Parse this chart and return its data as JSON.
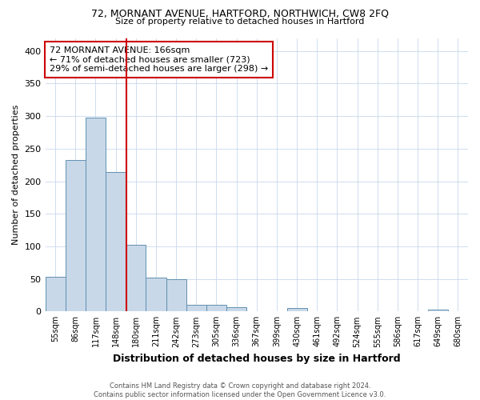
{
  "title": "72, MORNANT AVENUE, HARTFORD, NORTHWICH, CW8 2FQ",
  "subtitle": "Size of property relative to detached houses in Hartford",
  "xlabel": "Distribution of detached houses by size in Hartford",
  "ylabel": "Number of detached properties",
  "categories": [
    "55sqm",
    "86sqm",
    "117sqm",
    "148sqm",
    "180sqm",
    "211sqm",
    "242sqm",
    "273sqm",
    "305sqm",
    "336sqm",
    "367sqm",
    "399sqm",
    "430sqm",
    "461sqm",
    "492sqm",
    "524sqm",
    "555sqm",
    "586sqm",
    "617sqm",
    "649sqm",
    "680sqm"
  ],
  "values": [
    53,
    232,
    298,
    214,
    102,
    52,
    49,
    10,
    10,
    7,
    0,
    0,
    5,
    0,
    0,
    0,
    0,
    0,
    0,
    3,
    0
  ],
  "bar_color": "#c8d8e8",
  "bar_edge_color": "#6090b0",
  "vline_color": "#cc0000",
  "annotation_text": "72 MORNANT AVENUE: 166sqm\n← 71% of detached houses are smaller (723)\n29% of semi-detached houses are larger (298) →",
  "annotation_box_color": "#ffffff",
  "annotation_box_edge": "#cc0000",
  "ylim": [
    0,
    420
  ],
  "footer": "Contains HM Land Registry data © Crown copyright and database right 2024.\nContains public sector information licensed under the Open Government Licence v3.0.",
  "background_color": "#ffffff",
  "grid_color": "#c8d8ee"
}
